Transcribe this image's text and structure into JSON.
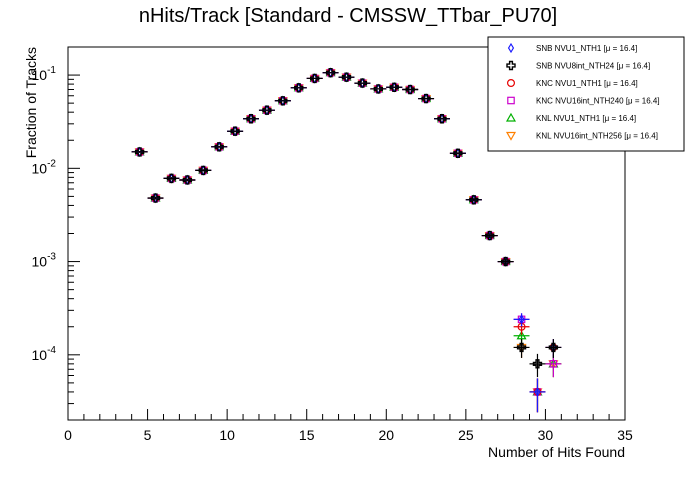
{
  "chart_data": {
    "type": "scatter",
    "title": "nHits/Track [Standard - CMSSW_TTbar_PU70]",
    "xlabel": "Number of Hits Found",
    "ylabel": "Fraction of Tracks",
    "xlim": [
      0,
      35
    ],
    "ylim": [
      2e-05,
      0.2
    ],
    "yscale": "log",
    "x_ticks": [
      0,
      5,
      10,
      15,
      20,
      25,
      30,
      35
    ],
    "y_ticks": [
      {
        "value": 0.0001,
        "base": "10",
        "exp": "-4"
      },
      {
        "value": 0.001,
        "base": "10",
        "exp": "-3"
      },
      {
        "value": 0.01,
        "base": "10",
        "exp": "-2"
      },
      {
        "value": 0.1,
        "base": "10",
        "exp": "-1"
      }
    ],
    "grid": false,
    "legend_position": "top-right",
    "series": [
      {
        "name": "SNB NVU1_NTH1 [μ = 16.4]",
        "marker": "diamond",
        "color": "#1a1aff",
        "x": [
          4.5,
          5.5,
          6.5,
          7.5,
          8.5,
          9.5,
          10.5,
          11.5,
          12.5,
          13.5,
          14.5,
          15.5,
          16.5,
          17.5,
          18.5,
          19.5,
          20.5,
          21.5,
          22.5,
          23.5,
          24.5,
          25.5,
          26.5,
          27.5,
          28.5,
          29.5,
          30.5
        ],
        "y": [
          0.015,
          0.0048,
          0.0078,
          0.0075,
          0.0095,
          0.017,
          0.025,
          0.034,
          0.042,
          0.053,
          0.073,
          0.092,
          0.106,
          0.095,
          0.082,
          0.071,
          0.074,
          0.07,
          0.056,
          0.034,
          0.0145,
          0.0046,
          0.0019,
          0.001,
          0.00024,
          4e-05,
          0.00012
        ]
      },
      {
        "name": "SNB NVU8int_NTH24 [μ = 16.4]",
        "marker": "cross",
        "color": "#000000",
        "x": [
          4.5,
          5.5,
          6.5,
          7.5,
          8.5,
          9.5,
          10.5,
          11.5,
          12.5,
          13.5,
          14.5,
          15.5,
          16.5,
          17.5,
          18.5,
          19.5,
          20.5,
          21.5,
          22.5,
          23.5,
          24.5,
          25.5,
          26.5,
          27.5,
          28.5,
          29.5,
          30.5
        ],
        "y": [
          0.015,
          0.0048,
          0.0078,
          0.0075,
          0.0095,
          0.017,
          0.025,
          0.034,
          0.042,
          0.053,
          0.073,
          0.092,
          0.106,
          0.095,
          0.082,
          0.071,
          0.074,
          0.07,
          0.056,
          0.034,
          0.0145,
          0.0046,
          0.0019,
          0.001,
          0.00012,
          8e-05,
          0.00012
        ]
      },
      {
        "name": "KNC NVU1_NTH1 [μ = 16.4]",
        "marker": "circle",
        "color": "#e60000",
        "x": [
          4.5,
          5.5,
          6.5,
          7.5,
          8.5,
          9.5,
          10.5,
          11.5,
          12.5,
          13.5,
          14.5,
          15.5,
          16.5,
          17.5,
          18.5,
          19.5,
          20.5,
          21.5,
          22.5,
          23.5,
          24.5,
          25.5,
          26.5,
          27.5,
          28.5,
          29.5,
          30.5
        ],
        "y": [
          0.015,
          0.0048,
          0.0078,
          0.0075,
          0.0095,
          0.017,
          0.025,
          0.034,
          0.042,
          0.053,
          0.073,
          0.092,
          0.106,
          0.095,
          0.082,
          0.071,
          0.074,
          0.07,
          0.056,
          0.034,
          0.0145,
          0.0046,
          0.0019,
          0.001,
          0.0002,
          4e-05,
          0.00012
        ]
      },
      {
        "name": "KNC NVU16int_NTH240 [μ = 16.4]",
        "marker": "square",
        "color": "#cc00cc",
        "x": [
          4.5,
          5.5,
          6.5,
          7.5,
          8.5,
          9.5,
          10.5,
          11.5,
          12.5,
          13.5,
          14.5,
          15.5,
          16.5,
          17.5,
          18.5,
          19.5,
          20.5,
          21.5,
          22.5,
          23.5,
          24.5,
          25.5,
          26.5,
          27.5,
          28.5,
          29.5,
          30.5
        ],
        "y": [
          0.015,
          0.0048,
          0.0078,
          0.0075,
          0.0095,
          0.017,
          0.025,
          0.034,
          0.042,
          0.053,
          0.073,
          0.092,
          0.106,
          0.095,
          0.082,
          0.071,
          0.074,
          0.07,
          0.056,
          0.034,
          0.0145,
          0.0046,
          0.0019,
          0.001,
          0.00024,
          4e-05,
          8e-05
        ]
      },
      {
        "name": "KNL NVU1_NTH1 [μ = 16.4]",
        "marker": "triangle-up",
        "color": "#00b000",
        "x": [
          4.5,
          5.5,
          6.5,
          7.5,
          8.5,
          9.5,
          10.5,
          11.5,
          12.5,
          13.5,
          14.5,
          15.5,
          16.5,
          17.5,
          18.5,
          19.5,
          20.5,
          21.5,
          22.5,
          23.5,
          24.5,
          25.5,
          26.5,
          27.5,
          28.5,
          29.5,
          30.5
        ],
        "y": [
          0.015,
          0.0048,
          0.0078,
          0.0075,
          0.0095,
          0.017,
          0.025,
          0.034,
          0.042,
          0.053,
          0.073,
          0.092,
          0.106,
          0.095,
          0.082,
          0.071,
          0.074,
          0.07,
          0.056,
          0.034,
          0.0145,
          0.0046,
          0.0019,
          0.001,
          0.00016,
          4e-05,
          8e-05
        ]
      },
      {
        "name": "KNL NVU16int_NTH256 [μ = 16.4]",
        "marker": "triangle-down",
        "color": "#ff8000",
        "x": [
          4.5,
          5.5,
          6.5,
          7.5,
          8.5,
          9.5,
          10.5,
          11.5,
          12.5,
          13.5,
          14.5,
          15.5,
          16.5,
          17.5,
          18.5,
          19.5,
          20.5,
          21.5,
          22.5,
          23.5,
          24.5,
          25.5,
          26.5,
          27.5,
          28.5,
          29.5,
          30.5
        ],
        "y": [
          0.015,
          0.0048,
          0.0078,
          0.0075,
          0.0095,
          0.017,
          0.025,
          0.034,
          0.042,
          0.053,
          0.073,
          0.092,
          0.106,
          0.095,
          0.082,
          0.071,
          0.074,
          0.07,
          0.056,
          0.034,
          0.0145,
          0.0046,
          0.0019,
          0.001,
          0.00012,
          4e-05,
          8e-05
        ]
      }
    ]
  }
}
